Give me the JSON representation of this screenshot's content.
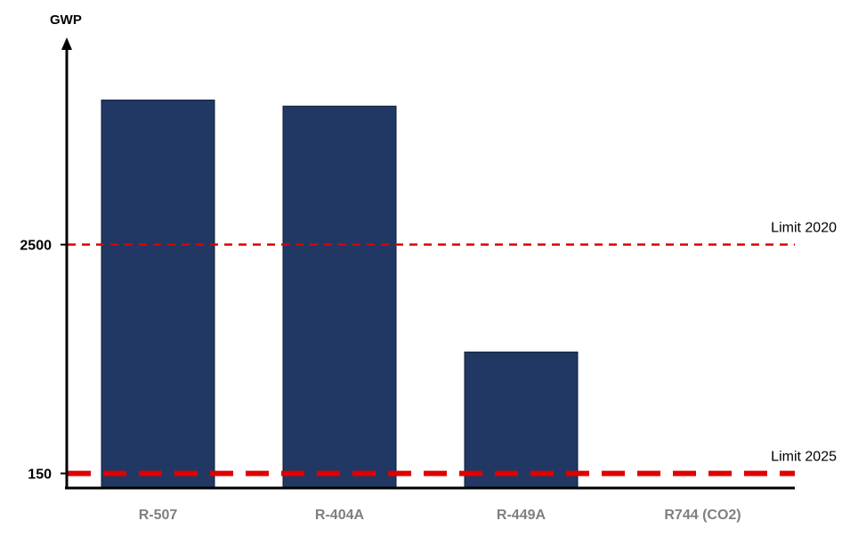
{
  "chart_data": {
    "type": "bar",
    "ylabel": "GWP",
    "categories": [
      "R-507",
      "R-404A",
      "R-449A",
      "R744 (CO2)"
    ],
    "values": [
      3985,
      3922,
      1397,
      1
    ],
    "y_ticks": [
      {
        "value": 150,
        "label": "150"
      },
      {
        "value": 2500,
        "label": "2500"
      }
    ],
    "ylim": [
      0,
      4500
    ],
    "reference_lines": [
      {
        "value": 2500,
        "label": "Limit 2020",
        "style": "dashed-thin"
      },
      {
        "value": 150,
        "label": "Limit 2025",
        "style": "dashed-thick"
      }
    ],
    "grid": false,
    "colors": {
      "bar": "#213864",
      "bar_edge": "#0f1c35",
      "limit": "#e00000",
      "axis": "#000000",
      "category_label": "#7f7f7f"
    }
  }
}
